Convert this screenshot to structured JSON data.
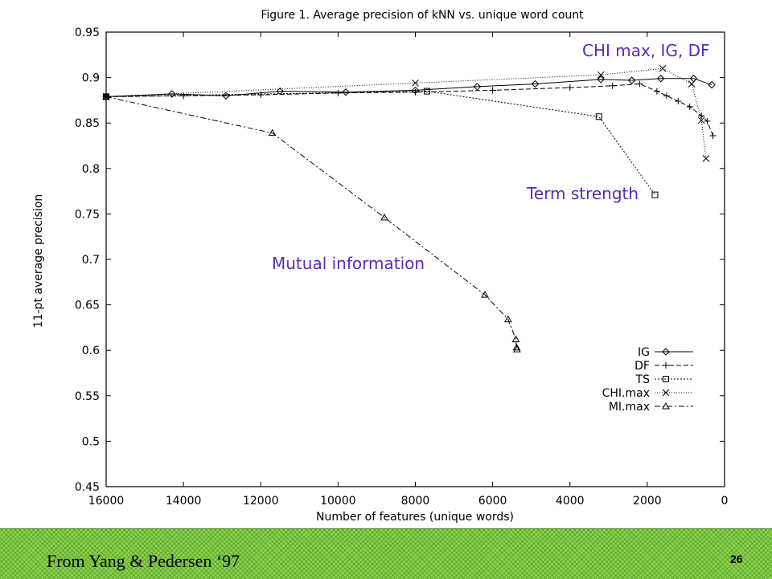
{
  "chart_data": {
    "type": "line",
    "title": "Figure 1. Average precision of kNN vs. unique word count",
    "xlabel": "Number of features (unique words)",
    "ylabel": "11-pt average precision",
    "xlim": [
      16000,
      0
    ],
    "ylim": [
      0.45,
      0.95
    ],
    "x_ticks": [
      "16000",
      "14000",
      "12000",
      "10000",
      "8000",
      "6000",
      "4000",
      "2000",
      "0"
    ],
    "y_ticks": [
      "0.95",
      "0.9",
      "0.85",
      "0.8",
      "0.75",
      "0.7",
      "0.65",
      "0.6",
      "0.55",
      "0.5",
      "0.45"
    ],
    "legend_position": "bottom-right",
    "series": [
      {
        "name": "IG",
        "marker": "diamond",
        "dash": "solid",
        "points": [
          [
            16000,
            0.879
          ],
          [
            14300,
            0.882
          ],
          [
            12900,
            0.88
          ],
          [
            11500,
            0.885
          ],
          [
            9800,
            0.884
          ],
          [
            8000,
            0.886
          ],
          [
            6400,
            0.89
          ],
          [
            4900,
            0.893
          ],
          [
            3200,
            0.898
          ],
          [
            2400,
            0.897
          ],
          [
            1650,
            0.899
          ],
          [
            800,
            0.899
          ],
          [
            330,
            0.892
          ]
        ]
      },
      {
        "name": "DF",
        "marker": "plus",
        "dash": "dashed",
        "points": [
          [
            16000,
            0.879
          ],
          [
            14000,
            0.88
          ],
          [
            12000,
            0.881
          ],
          [
            10000,
            0.883
          ],
          [
            8000,
            0.884
          ],
          [
            6000,
            0.886
          ],
          [
            4000,
            0.889
          ],
          [
            2900,
            0.891
          ],
          [
            2200,
            0.893
          ],
          [
            1750,
            0.885
          ],
          [
            1500,
            0.88
          ],
          [
            1200,
            0.874
          ],
          [
            900,
            0.868
          ],
          [
            600,
            0.858
          ],
          [
            450,
            0.852
          ],
          [
            300,
            0.836
          ]
        ]
      },
      {
        "name": "TS",
        "marker": "square",
        "dash": "dotted",
        "points": [
          [
            16000,
            0.879
          ],
          [
            7700,
            0.885
          ],
          [
            3250,
            0.857
          ],
          [
            1800,
            0.771
          ]
        ]
      },
      {
        "name": "CHI.max",
        "marker": "cross",
        "dash": "dotted-fine",
        "points": [
          [
            16000,
            0.879
          ],
          [
            8000,
            0.894
          ],
          [
            3200,
            0.903
          ],
          [
            1600,
            0.91
          ],
          [
            850,
            0.893
          ],
          [
            600,
            0.853
          ],
          [
            480,
            0.811
          ]
        ]
      },
      {
        "name": "MI.max",
        "marker": "triangle",
        "dash": "dash-dot",
        "points": [
          [
            16000,
            0.879
          ],
          [
            11700,
            0.839
          ],
          [
            8800,
            0.746
          ],
          [
            6200,
            0.661
          ],
          [
            5600,
            0.634
          ],
          [
            5400,
            0.612
          ],
          [
            5380,
            0.603
          ],
          [
            5370,
            0.601
          ]
        ]
      }
    ],
    "annotations": {
      "chi": "CHI max, IG, DF",
      "ts": "Term strength",
      "mi": "Mutual information"
    }
  },
  "footer": {
    "source": "From Yang & Pedersen ‘97",
    "slide_number": "26"
  }
}
